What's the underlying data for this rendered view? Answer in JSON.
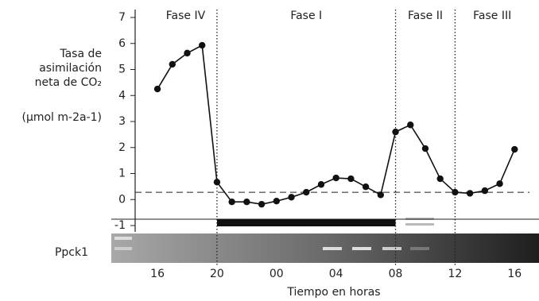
{
  "chart_data": {
    "type": "line",
    "y_label": [
      "Tasa de",
      "asimilación",
      "neta de CO₂"
    ],
    "y_units": "(µmol m-2a-1)",
    "x_label": "Tiempo en horas",
    "gel_label": "Ppck1",
    "phases": [
      {
        "name": "Fase IV",
        "start": 14.5,
        "end": 20
      },
      {
        "name": "Fase I",
        "start": 20,
        "end": 32
      },
      {
        "name": "Fase II",
        "start": 32,
        "end": 36
      },
      {
        "name": "Fase III",
        "start": 36,
        "end": 41
      }
    ],
    "phase_boundaries": [
      20,
      32,
      36
    ],
    "dark_period": [
      20,
      32
    ],
    "reference_line": 0.28,
    "x": [
      16,
      17,
      18,
      19,
      20,
      21,
      22,
      23,
      24,
      25,
      26,
      27,
      28,
      29,
      30,
      31,
      32,
      33,
      34,
      35,
      36,
      37,
      38,
      39,
      40
    ],
    "series": [
      {
        "color": "#111111",
        "values": [
          4.25,
          5.2,
          5.63,
          5.93,
          0.67,
          -0.09,
          -0.09,
          -0.18,
          -0.06,
          0.09,
          0.28,
          0.58,
          0.83,
          0.8,
          0.49,
          0.18,
          2.6,
          2.87,
          1.96,
          0.8,
          0.28,
          0.24,
          0.34,
          0.61,
          1.93
        ]
      }
    ],
    "xlim": [
      14.5,
      41
    ],
    "ylim": [
      -1,
      7
    ],
    "xticks": [
      16,
      20,
      {
        "value": 24,
        "label": "00"
      },
      {
        "value": 28,
        "label": "04"
      },
      {
        "value": 32,
        "label": "08"
      },
      {
        "value": 36,
        "label": "12"
      },
      {
        "value": 40,
        "label": "16"
      }
    ],
    "yticks": [
      -1,
      0,
      1,
      2,
      3,
      4,
      5,
      6,
      7
    ]
  }
}
